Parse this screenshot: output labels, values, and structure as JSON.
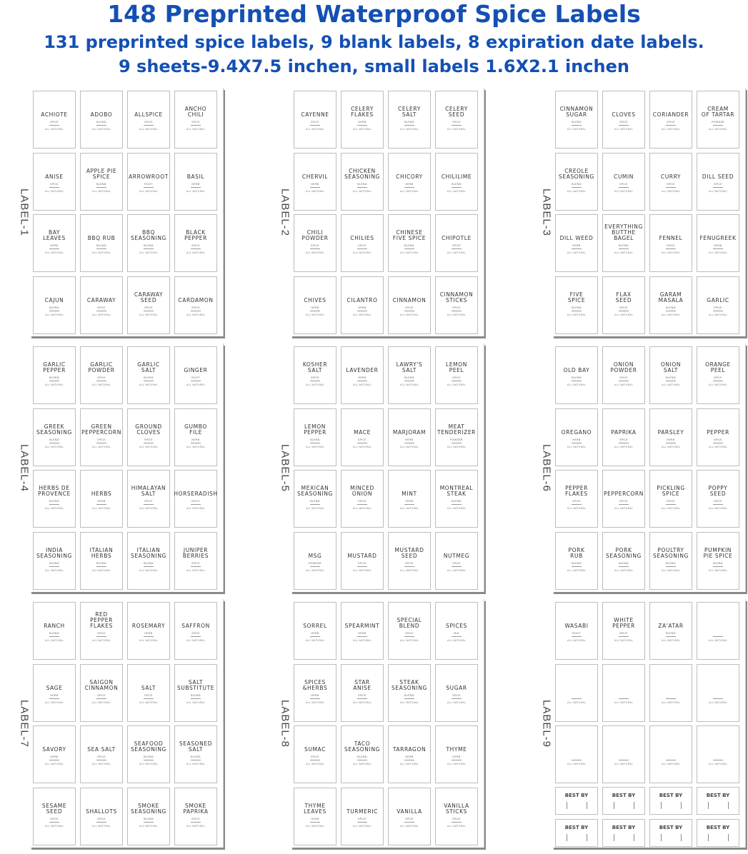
{
  "header": {
    "title": "148 Preprinted Waterproof Spice Labels",
    "subtitle": "131 preprinted spice labels, 9 blank labels, 8 expiration date labels.",
    "specs": "9 sheets-9.4X7.5 inchen, small labels 1.6X2.1 inchen"
  },
  "colors": {
    "title": "#1450b4"
  },
  "natural_text": "ALL NATURAL",
  "best_by_text": "BEST BY",
  "sheets": [
    {
      "side_label": "LABEL-1",
      "labels": [
        {
          "name": "ACHIOTE",
          "type": "SPICE"
        },
        {
          "name": "ADOBO",
          "type": "BLEND"
        },
        {
          "name": "ALLSPICE",
          "type": "SPICE"
        },
        {
          "name": "ANCHO\nCHILI",
          "type": "SPICE"
        },
        {
          "name": "ANISE",
          "type": "SPICE"
        },
        {
          "name": "APPLE PIE\nSPICE",
          "type": "BLEND"
        },
        {
          "name": "ARROWROOT",
          "type": "ROOT"
        },
        {
          "name": "BASIL",
          "type": "HERB"
        },
        {
          "name": "BAY\nLEAVES",
          "type": "HERB"
        },
        {
          "name": "BBQ RUB",
          "type": "BLEND"
        },
        {
          "name": "BBQ\nSEASONING",
          "type": "BLEND"
        },
        {
          "name": "BLACK\nPEPPER",
          "type": "SPICE"
        },
        {
          "name": "CAJUN",
          "type": "BLEND"
        },
        {
          "name": "CARAWAY",
          "type": "SPICE"
        },
        {
          "name": "CARAWAY\nSEED",
          "type": "SPICE"
        },
        {
          "name": "CARDAMON",
          "type": "SPICE"
        }
      ]
    },
    {
      "side_label": "LABEL-2",
      "labels": [
        {
          "name": "CAYENNE",
          "type": "SPICE"
        },
        {
          "name": "CELERY\nFLAKES",
          "type": "HERB"
        },
        {
          "name": "CELERY\nSALT",
          "type": "BLEND"
        },
        {
          "name": "CELERY\nSEED",
          "type": "SPICE"
        },
        {
          "name": "CHERVIL",
          "type": "HERB"
        },
        {
          "name": "CHICKEN\nSEASONING",
          "type": "BLEND"
        },
        {
          "name": "CHICORY",
          "type": "HERB"
        },
        {
          "name": "CHILILIME",
          "type": "BLEND"
        },
        {
          "name": "CHILI\nPOWDER",
          "type": "SPICE"
        },
        {
          "name": "CHILIES",
          "type": "SPICE"
        },
        {
          "name": "CHINESE\nFIVE SPICE",
          "type": "BLEND"
        },
        {
          "name": "CHIPOTLE",
          "type": "SPICE"
        },
        {
          "name": "CHIVES",
          "type": "HERB"
        },
        {
          "name": "CILANTRO",
          "type": "HERB"
        },
        {
          "name": "CINNAMON",
          "type": "SPICE"
        },
        {
          "name": "CINNAMON\nSTICKS",
          "type": "SPICE"
        }
      ]
    },
    {
      "side_label": "LABEL-3",
      "labels": [
        {
          "name": "CINNAMON\nSUGAR",
          "type": "BLEND"
        },
        {
          "name": "CLOVES",
          "type": "SPICE"
        },
        {
          "name": "CORIANDER",
          "type": "SPICE"
        },
        {
          "name": "CREAM\nOF TARTAR",
          "type": "POWDER"
        },
        {
          "name": "CREOLE\nSEASONING",
          "type": "BLEND"
        },
        {
          "name": "CUMIN",
          "type": "SPICE"
        },
        {
          "name": "CURRY",
          "type": "SPICE"
        },
        {
          "name": "DILL SEED",
          "type": "SPICE"
        },
        {
          "name": "DILL WEED",
          "type": "HERB"
        },
        {
          "name": "EVERYTHING\nBUTTHE\nBAGEL",
          "type": "BLEND"
        },
        {
          "name": "FENNEL",
          "type": "SPICE"
        },
        {
          "name": "FENUGREEK",
          "type": "HERB"
        },
        {
          "name": "FIVE\nSPICE",
          "type": "BLEND"
        },
        {
          "name": "FLAX\nSEED",
          "type": "SPICE"
        },
        {
          "name": "GARAM\nMASALA",
          "type": "BLEND"
        },
        {
          "name": "GARLIC",
          "type": "SPICE"
        }
      ]
    },
    {
      "side_label": "LABEL-4",
      "labels": [
        {
          "name": "GARLIC\nPEPPER",
          "type": "BLEND"
        },
        {
          "name": "GARLIC\nPOWDER",
          "type": "SPICE"
        },
        {
          "name": "GARLIC\nSALT",
          "type": "BLEND"
        },
        {
          "name": "GINGER",
          "type": "ROOT"
        },
        {
          "name": "GREEK\nSEASONING",
          "type": "BLEND"
        },
        {
          "name": "GREEN\nPEPPERCORN",
          "type": "SPICE"
        },
        {
          "name": "GROUND\nCLOVES",
          "type": "SPICE"
        },
        {
          "name": "GUMBO\nFILE",
          "type": "HERB"
        },
        {
          "name": "HERBS DE\nPROVENCE",
          "type": "BLEND"
        },
        {
          "name": "HERBS",
          "type": "HERB"
        },
        {
          "name": "HIMALAYAN\nSALT",
          "type": "SPICE"
        },
        {
          "name": "HORSERADISH",
          "type": "ROOT"
        },
        {
          "name": "INDIA\nSEASONING",
          "type": "BLEND"
        },
        {
          "name": "ITALIAN\nHERBS",
          "type": "BLEND"
        },
        {
          "name": "ITALIAN\nSEASONING",
          "type": "BLEND"
        },
        {
          "name": "JUNIPER\nBERRIES",
          "type": "SPICE"
        }
      ]
    },
    {
      "side_label": "LABEL-5",
      "labels": [
        {
          "name": "KOSHER\nSALT",
          "type": "SPICE"
        },
        {
          "name": "LAVENDER",
          "type": "HERB"
        },
        {
          "name": "LAWRY'S\nSALT",
          "type": "BLEND"
        },
        {
          "name": "LEMON\nPEEL",
          "type": "SPICE"
        },
        {
          "name": "LEMON\nPEPPER",
          "type": "BLEND"
        },
        {
          "name": "MACE",
          "type": "SPICE"
        },
        {
          "name": "MARJORAM",
          "type": "HERB"
        },
        {
          "name": "MEAT\nTENDERIZER",
          "type": "POWDER"
        },
        {
          "name": "MEXICAN\nSEASONING",
          "type": "BLEND"
        },
        {
          "name": "MINCED\nONION",
          "type": "SPICE"
        },
        {
          "name": "MINT",
          "type": "HERB"
        },
        {
          "name": "MONTREAL\nSTEAK",
          "type": "BLEND"
        },
        {
          "name": "MSG",
          "type": "POWDER"
        },
        {
          "name": "MUSTARD",
          "type": "SPICE"
        },
        {
          "name": "MUSTARD\nSEED",
          "type": "SPICE"
        },
        {
          "name": "NUTMEG",
          "type": "SPICE"
        }
      ]
    },
    {
      "side_label": "LABEL-6",
      "labels": [
        {
          "name": "OLD BAY",
          "type": "BLEND"
        },
        {
          "name": "ONION\nPOWDER",
          "type": "SPICE"
        },
        {
          "name": "ONION\nSALT",
          "type": "BLEND"
        },
        {
          "name": "ORANGE\nPEEL",
          "type": "SPICE"
        },
        {
          "name": "OREGANO",
          "type": "HERB"
        },
        {
          "name": "PAPRIKA",
          "type": "SPICE"
        },
        {
          "name": "PARSLEY",
          "type": "HERB"
        },
        {
          "name": "PEPPER",
          "type": "SPICE"
        },
        {
          "name": "PEPPER\nFLAKES",
          "type": "SPICE"
        },
        {
          "name": "PEPPERCORN",
          "type": "SPICE"
        },
        {
          "name": "PICKLING\nSPICE",
          "type": "SPICE"
        },
        {
          "name": "POPPY\nSEED",
          "type": "SPICE"
        },
        {
          "name": "PORK\nRUB",
          "type": "BLEND"
        },
        {
          "name": "PORK\nSEASONING",
          "type": "BLEND"
        },
        {
          "name": "POULTRY\nSEASONING",
          "type": "BLEND"
        },
        {
          "name": "PUMPKIN\nPIE SPICE",
          "type": "BLEND"
        }
      ]
    },
    {
      "side_label": "LABEL-7",
      "labels": [
        {
          "name": "RANCH",
          "type": "BLEND"
        },
        {
          "name": "RED\nPEPPER\nFLAKES",
          "type": "SPICE"
        },
        {
          "name": "ROSEMARY",
          "type": "HERB"
        },
        {
          "name": "SAFFRON",
          "type": "SPICE"
        },
        {
          "name": "SAGE",
          "type": "HERB"
        },
        {
          "name": "SAIGON\nCINNAMON",
          "type": "SPICE"
        },
        {
          "name": "SALT",
          "type": "SPICE"
        },
        {
          "name": "SALT\nSUBSTITUTE",
          "type": "BLEND"
        },
        {
          "name": "SAVORY",
          "type": "HERB"
        },
        {
          "name": "SEA SALT",
          "type": "SPICE"
        },
        {
          "name": "SEAFOOD\nSEASONING",
          "type": "BLEND"
        },
        {
          "name": "SEASONED\nSALT",
          "type": "BLEND"
        },
        {
          "name": "SESAME\nSEED",
          "type": "SPICE"
        },
        {
          "name": "SHALLOTS",
          "type": "SPICE"
        },
        {
          "name": "SMOKE\nSEASONING",
          "type": "BLEND"
        },
        {
          "name": "SMOKE\nPAPRIKA",
          "type": "SPICE"
        }
      ]
    },
    {
      "side_label": "LABEL-8",
      "labels": [
        {
          "name": "SORREL",
          "type": "HERB"
        },
        {
          "name": "SPEARMINT",
          "type": "HERB"
        },
        {
          "name": "SPECIAL\nBLEND",
          "type": "SPICE"
        },
        {
          "name": "SPICES",
          "type": "MIX"
        },
        {
          "name": "SPICES\n&HERBS",
          "type": "HERB"
        },
        {
          "name": "STAR\nANISE",
          "type": "SPICE"
        },
        {
          "name": "STEAK\nSEASONING",
          "type": "BLEND"
        },
        {
          "name": "SUGAR",
          "type": "SPICE"
        },
        {
          "name": "SUMAC",
          "type": "SPICE"
        },
        {
          "name": "TACO\nSEASONING",
          "type": "BLEND"
        },
        {
          "name": "TARRAGON",
          "type": "HERB"
        },
        {
          "name": "THYME",
          "type": "HERB"
        },
        {
          "name": "THYME\nLEAVES",
          "type": "HERB"
        },
        {
          "name": "TURMERIC",
          "type": "SPICE"
        },
        {
          "name": "VANILLA",
          "type": "SPICE"
        },
        {
          "name": "VANILLA\nSTICKS",
          "type": "SPICE"
        }
      ]
    },
    {
      "side_label": "LABEL-9",
      "labels": [
        {
          "name": "WASABI",
          "type": "ROOT"
        },
        {
          "name": "WHITE\nPEPPER",
          "type": "SPICE"
        },
        {
          "name": "ZA'ATAR",
          "type": "BLEND"
        },
        {
          "name": "",
          "type": ""
        },
        {
          "name": "",
          "type": ""
        },
        {
          "name": "",
          "type": ""
        },
        {
          "name": "",
          "type": ""
        },
        {
          "name": "",
          "type": ""
        },
        {
          "name": "",
          "type": ""
        },
        {
          "name": "",
          "type": ""
        },
        {
          "name": "",
          "type": ""
        },
        {
          "name": "",
          "type": ""
        }
      ],
      "best_by_count": 8
    }
  ]
}
